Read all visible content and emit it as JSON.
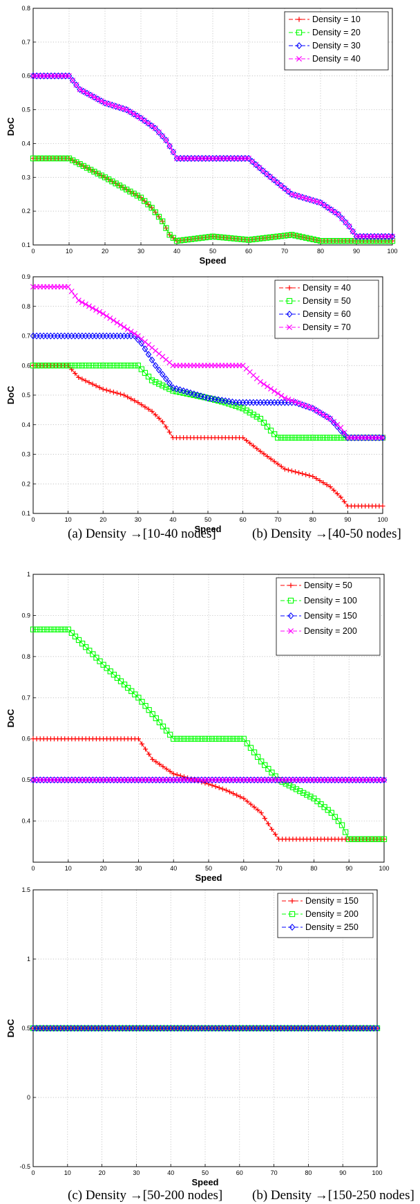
{
  "captions": {
    "a": "(a) Density →[10-40 nodes]",
    "b": "(b) Density →[40-50 nodes]",
    "c": "(c) Density →[50-200 nodes]",
    "d": "(b) Density →[150-250 nodes]"
  },
  "colors": {
    "red": "#ff0000",
    "green": "#00ff00",
    "blue": "#0000ff",
    "magenta": "#ff00ff"
  },
  "chart_data": [
    {
      "type": "line",
      "xlabel": "Speed",
      "ylabel": "DoC",
      "xlim": [
        0,
        100
      ],
      "ylim": [
        0.1,
        0.8
      ],
      "xticks": [
        "0",
        "10",
        "20",
        "30",
        "40",
        "50",
        "60",
        "70",
        "80",
        "90",
        "100"
      ],
      "yticks": [
        "0.1",
        "0.2",
        "0.3",
        "0.4",
        "0.5",
        "0.6",
        "0.7",
        "0.8"
      ],
      "grid": true,
      "legend_position": "top-right",
      "series": [
        {
          "name": "Density = 10",
          "color": "red",
          "marker": "plus",
          "x": [
            0,
            10,
            20,
            25,
            30,
            33,
            36,
            38,
            40,
            50,
            60,
            72,
            80,
            90,
            100
          ],
          "y": [
            0.356,
            0.356,
            0.3,
            0.27,
            0.24,
            0.21,
            0.17,
            0.13,
            0.112,
            0.125,
            0.115,
            0.13,
            0.112,
            0.112,
            0.112
          ]
        },
        {
          "name": "Density = 20",
          "color": "green",
          "marker": "square",
          "x": [
            0,
            10,
            20,
            25,
            30,
            33,
            36,
            38,
            40,
            50,
            60,
            72,
            80,
            90,
            100
          ],
          "y": [
            0.356,
            0.356,
            0.3,
            0.27,
            0.24,
            0.21,
            0.17,
            0.13,
            0.112,
            0.125,
            0.115,
            0.13,
            0.112,
            0.112,
            0.112
          ]
        },
        {
          "name": "Density = 30",
          "color": "blue",
          "marker": "diamond",
          "x": [
            0,
            10,
            13,
            20,
            26,
            30,
            34,
            37,
            39,
            40,
            60,
            65,
            72,
            80,
            85,
            88,
            90,
            100
          ],
          "y": [
            0.6,
            0.6,
            0.56,
            0.52,
            0.5,
            0.475,
            0.445,
            0.41,
            0.375,
            0.356,
            0.356,
            0.31,
            0.25,
            0.225,
            0.19,
            0.155,
            0.125,
            0.125
          ]
        },
        {
          "name": "Density = 40",
          "color": "magenta",
          "marker": "x",
          "x": [
            0,
            10,
            13,
            20,
            26,
            30,
            34,
            37,
            39,
            40,
            60,
            65,
            72,
            80,
            85,
            88,
            90,
            100
          ],
          "y": [
            0.6,
            0.6,
            0.56,
            0.52,
            0.5,
            0.475,
            0.445,
            0.41,
            0.375,
            0.356,
            0.356,
            0.31,
            0.25,
            0.225,
            0.19,
            0.155,
            0.125,
            0.125
          ]
        }
      ]
    },
    {
      "type": "line",
      "xlabel": "Speed",
      "ylabel": "DoC",
      "xlim": [
        0,
        100
      ],
      "ylim": [
        0.1,
        0.9
      ],
      "xticks": [
        "0",
        "10",
        "20",
        "30",
        "40",
        "50",
        "60",
        "70",
        "80",
        "90",
        "100"
      ],
      "yticks": [
        "0.1",
        "0.2",
        "0.3",
        "0.4",
        "0.5",
        "0.6",
        "0.7",
        "0.8",
        "0.9"
      ],
      "grid": true,
      "legend_position": "top-right",
      "series": [
        {
          "name": "Density = 40",
          "color": "red",
          "marker": "plus",
          "x": [
            0,
            10,
            13,
            20,
            26,
            30,
            34,
            37,
            39,
            40,
            60,
            65,
            72,
            80,
            85,
            88,
            90,
            100
          ],
          "y": [
            0.6,
            0.6,
            0.56,
            0.52,
            0.5,
            0.475,
            0.445,
            0.41,
            0.375,
            0.356,
            0.356,
            0.31,
            0.25,
            0.225,
            0.19,
            0.155,
            0.125,
            0.125
          ]
        },
        {
          "name": "Density = 50",
          "color": "green",
          "marker": "square",
          "x": [
            0,
            30,
            34,
            40,
            50,
            55,
            60,
            65,
            68,
            70,
            90,
            100
          ],
          "y": [
            0.6,
            0.6,
            0.55,
            0.515,
            0.49,
            0.475,
            0.455,
            0.42,
            0.38,
            0.356,
            0.356,
            0.356
          ]
        },
        {
          "name": "Density = 60",
          "color": "blue",
          "marker": "diamond",
          "x": [
            0,
            29,
            31,
            35,
            40,
            50,
            58,
            70,
            75,
            80,
            85,
            88,
            90,
            100
          ],
          "y": [
            0.7,
            0.7,
            0.675,
            0.6,
            0.525,
            0.49,
            0.475,
            0.475,
            0.475,
            0.455,
            0.42,
            0.38,
            0.356,
            0.356
          ]
        },
        {
          "name": "Density = 70",
          "color": "magenta",
          "marker": "x",
          "x": [
            0,
            10,
            13,
            20,
            26,
            30,
            34,
            37,
            39,
            40,
            60,
            65,
            72,
            80,
            85,
            88,
            90,
            100
          ],
          "y": [
            0.866,
            0.866,
            0.82,
            0.775,
            0.73,
            0.7,
            0.66,
            0.63,
            0.61,
            0.6,
            0.6,
            0.545,
            0.49,
            0.455,
            0.42,
            0.39,
            0.356,
            0.356
          ]
        }
      ]
    },
    {
      "type": "line",
      "xlabel": "Speed",
      "ylabel": "DoC",
      "xlim": [
        0,
        100
      ],
      "ylim": [
        0.3,
        1.0
      ],
      "xticks": [
        "0",
        "10",
        "20",
        "30",
        "40",
        "50",
        "60",
        "70",
        "80",
        "90",
        "100"
      ],
      "yticks": [
        "0.4",
        "0.5",
        "0.6",
        "0.7",
        "0.8",
        "0.9",
        "1"
      ],
      "grid": true,
      "legend_position": "top-right",
      "series": [
        {
          "name": "Density = 50",
          "color": "red",
          "marker": "plus",
          "x": [
            0,
            30,
            34,
            40,
            50,
            55,
            60,
            65,
            68,
            70,
            90,
            100
          ],
          "y": [
            0.6,
            0.6,
            0.55,
            0.515,
            0.49,
            0.475,
            0.455,
            0.42,
            0.38,
            0.356,
            0.356,
            0.356
          ]
        },
        {
          "name": "Density = 100",
          "color": "green",
          "marker": "square",
          "x": [
            0,
            10,
            20,
            30,
            35,
            40,
            60,
            65,
            70,
            80,
            85,
            88,
            90,
            100
          ],
          "y": [
            0.866,
            0.866,
            0.78,
            0.7,
            0.65,
            0.6,
            0.6,
            0.545,
            0.5,
            0.455,
            0.42,
            0.39,
            0.356,
            0.356
          ]
        },
        {
          "name": "Density = 150",
          "color": "blue",
          "marker": "diamond",
          "x": [
            0,
            100
          ],
          "y": [
            0.5,
            0.5
          ]
        },
        {
          "name": "Density = 200",
          "color": "magenta",
          "marker": "x",
          "x": [
            0,
            100
          ],
          "y": [
            0.5,
            0.5
          ]
        }
      ]
    },
    {
      "type": "line",
      "xlabel": "Speed",
      "ylabel": "DoC",
      "xlim": [
        0,
        100
      ],
      "ylim": [
        -0.5,
        1.5
      ],
      "xticks": [
        "0",
        "10",
        "20",
        "30",
        "40",
        "50",
        "60",
        "70",
        "80",
        "90",
        "100"
      ],
      "yticks": [
        "-0.5",
        "0",
        "0.5",
        "1",
        "1.5"
      ],
      "grid": true,
      "legend_position": "top-right",
      "series": [
        {
          "name": "Density = 150",
          "color": "red",
          "marker": "plus",
          "x": [
            0,
            100
          ],
          "y": [
            0.5,
            0.5
          ]
        },
        {
          "name": "Density = 200",
          "color": "green",
          "marker": "square",
          "x": [
            0,
            100
          ],
          "y": [
            0.5,
            0.5
          ]
        },
        {
          "name": "Density = 250",
          "color": "blue",
          "marker": "diamond",
          "x": [
            0,
            100
          ],
          "y": [
            0.5,
            0.5
          ]
        }
      ]
    }
  ]
}
